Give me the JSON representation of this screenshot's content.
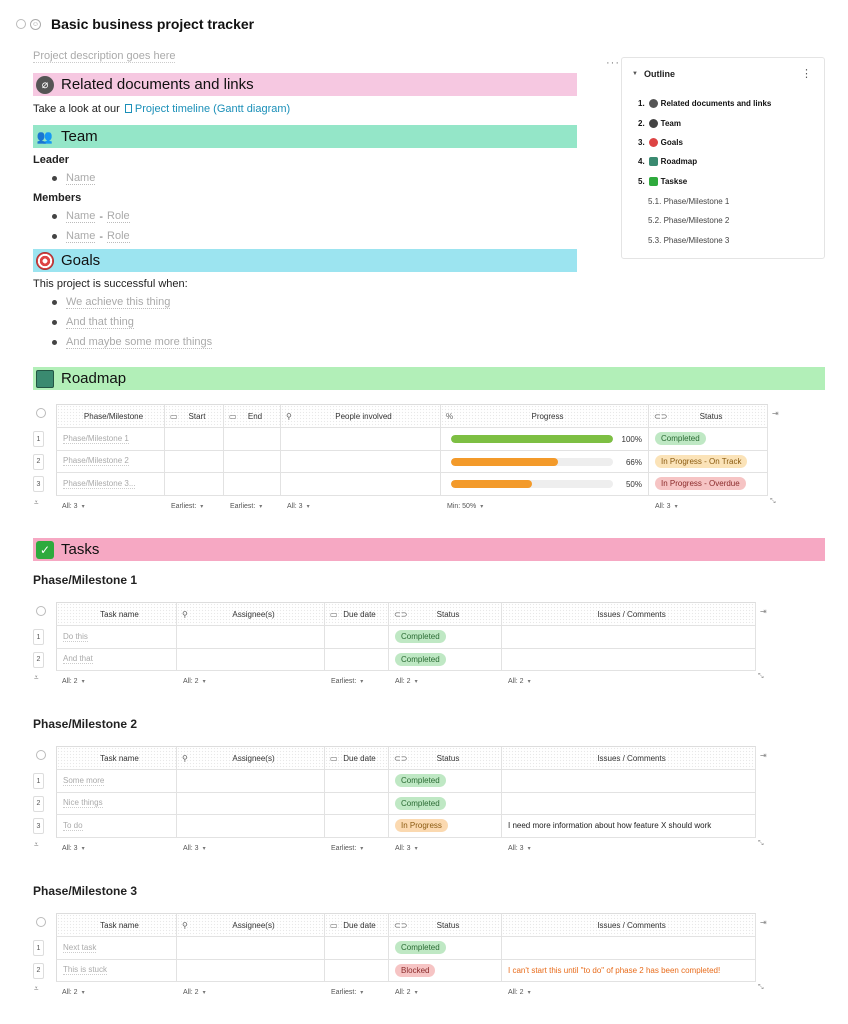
{
  "page": {
    "title": "Basic business project tracker",
    "description_placeholder": "Project description goes here"
  },
  "sections": {
    "related": {
      "heading": "Related documents and links",
      "icon": "paperclip-icon",
      "color": "#f6c8e1",
      "intro": "Take a look at our",
      "link": "Project timeline (Gantt diagram)"
    },
    "team": {
      "heading": "Team",
      "icon": "team-icon",
      "color": "#94e6c8",
      "leader_label": "Leader",
      "members_label": "Members",
      "leader": "Name",
      "members": [
        {
          "name": "Name",
          "sep": "-",
          "role": "Role"
        },
        {
          "name": "Name",
          "sep": "-",
          "role": "Role"
        }
      ]
    },
    "goals": {
      "heading": "Goals",
      "icon": "target-icon",
      "color": "#9ce4f0",
      "intro": "This project is successful when:",
      "items": [
        "We achieve this thing",
        "And that thing",
        "And maybe some more things"
      ]
    },
    "roadmap": {
      "heading": "Roadmap",
      "icon": "map-icon",
      "color": "#b2efb8"
    },
    "tasks": {
      "heading": "Tasks",
      "icon": "checkbox-icon",
      "color": "#f6a8c3"
    }
  },
  "outline": {
    "title": "Outline",
    "items": [
      {
        "num": "1.",
        "label": "Related documents and links"
      },
      {
        "num": "2.",
        "label": "Team"
      },
      {
        "num": "3.",
        "label": "Goals"
      },
      {
        "num": "4.",
        "label": "Roadmap"
      },
      {
        "num": "5.",
        "label": "Taskse"
      }
    ],
    "subitems": [
      "5.1. Phase/Milestone 1",
      "5.2. Phase/Milestone 2",
      "5.3. Phase/Milestone 3"
    ]
  },
  "roadmap_table": {
    "headers": [
      "Phase/Milestone",
      "Start",
      "End",
      "People involved",
      "Progress",
      "Status"
    ],
    "rows": [
      {
        "num": "1",
        "phase": "Phase/Milestone 1",
        "progress": 100,
        "progress_label": "100%",
        "progress_color": "#7dbf43",
        "status": "Completed",
        "status_bg": "#bfe8c4",
        "status_fg": "#2a6b33"
      },
      {
        "num": "2",
        "phase": "Phase/Milestone 2",
        "progress": 66,
        "progress_label": "66%",
        "progress_color": "#f39a2a",
        "status": "In Progress - On Track",
        "status_bg": "#fbe3b8",
        "status_fg": "#8a5a10"
      },
      {
        "num": "3",
        "phase": "Phase/Milestone 3...",
        "progress": 50,
        "progress_label": "50%",
        "progress_color": "#f39a2a",
        "status": "In Progress - Overdue",
        "status_bg": "#f6c4c4",
        "status_fg": "#8a2a2a"
      }
    ],
    "footer": [
      "All: 3",
      "Earliest:",
      "Earliest:",
      "All: 3",
      "Min: 50%",
      "All: 3"
    ]
  },
  "task_tables": [
    {
      "heading": "Phase/Milestone 1",
      "headers": [
        "Task name",
        "Assignee(s)",
        "Due date",
        "Status",
        "Issues / Comments"
      ],
      "rows": [
        {
          "num": "1",
          "task": "Do this",
          "status": "Completed",
          "status_bg": "#bfe8c4",
          "status_fg": "#2a6b33",
          "issue": ""
        },
        {
          "num": "2",
          "task": "And that",
          "status": "Completed",
          "status_bg": "#bfe8c4",
          "status_fg": "#2a6b33",
          "issue": ""
        }
      ],
      "footer": [
        "All: 2",
        "All: 2",
        "Earliest:",
        "All: 2",
        "All: 2"
      ]
    },
    {
      "heading": "Phase/Milestone 2",
      "headers": [
        "Task name",
        "Assignee(s)",
        "Due date",
        "Status",
        "Issues / Comments"
      ],
      "rows": [
        {
          "num": "1",
          "task": "Some more",
          "status": "Completed",
          "status_bg": "#bfe8c4",
          "status_fg": "#2a6b33",
          "issue": ""
        },
        {
          "num": "2",
          "task": "Nice things",
          "status": "Completed",
          "status_bg": "#bfe8c4",
          "status_fg": "#2a6b33",
          "issue": ""
        },
        {
          "num": "3",
          "task": "To do",
          "status": "In Progress",
          "status_bg": "#fbd9b0",
          "status_fg": "#8a5a10",
          "issue": "I need more information about how feature X should work"
        }
      ],
      "footer": [
        "All: 3",
        "All: 3",
        "Earliest:",
        "All: 3",
        "All: 3"
      ]
    },
    {
      "heading": "Phase/Milestone 3",
      "headers": [
        "Task name",
        "Assignee(s)",
        "Due date",
        "Status",
        "Issues / Comments"
      ],
      "rows": [
        {
          "num": "1",
          "task": "Next task",
          "status": "Completed",
          "status_bg": "#bfe8c4",
          "status_fg": "#2a6b33",
          "issue": ""
        },
        {
          "num": "2",
          "task": "This is stuck",
          "status": "Blocked",
          "status_bg": "#f6c4c4",
          "status_fg": "#8a2a2a",
          "issue": "I can't start this until \"to do\" of phase 2 has been completed!",
          "issue_warn": true
        }
      ],
      "footer": [
        "All: 2",
        "All: 2",
        "Earliest:",
        "All: 2",
        "All: 2"
      ]
    }
  ]
}
